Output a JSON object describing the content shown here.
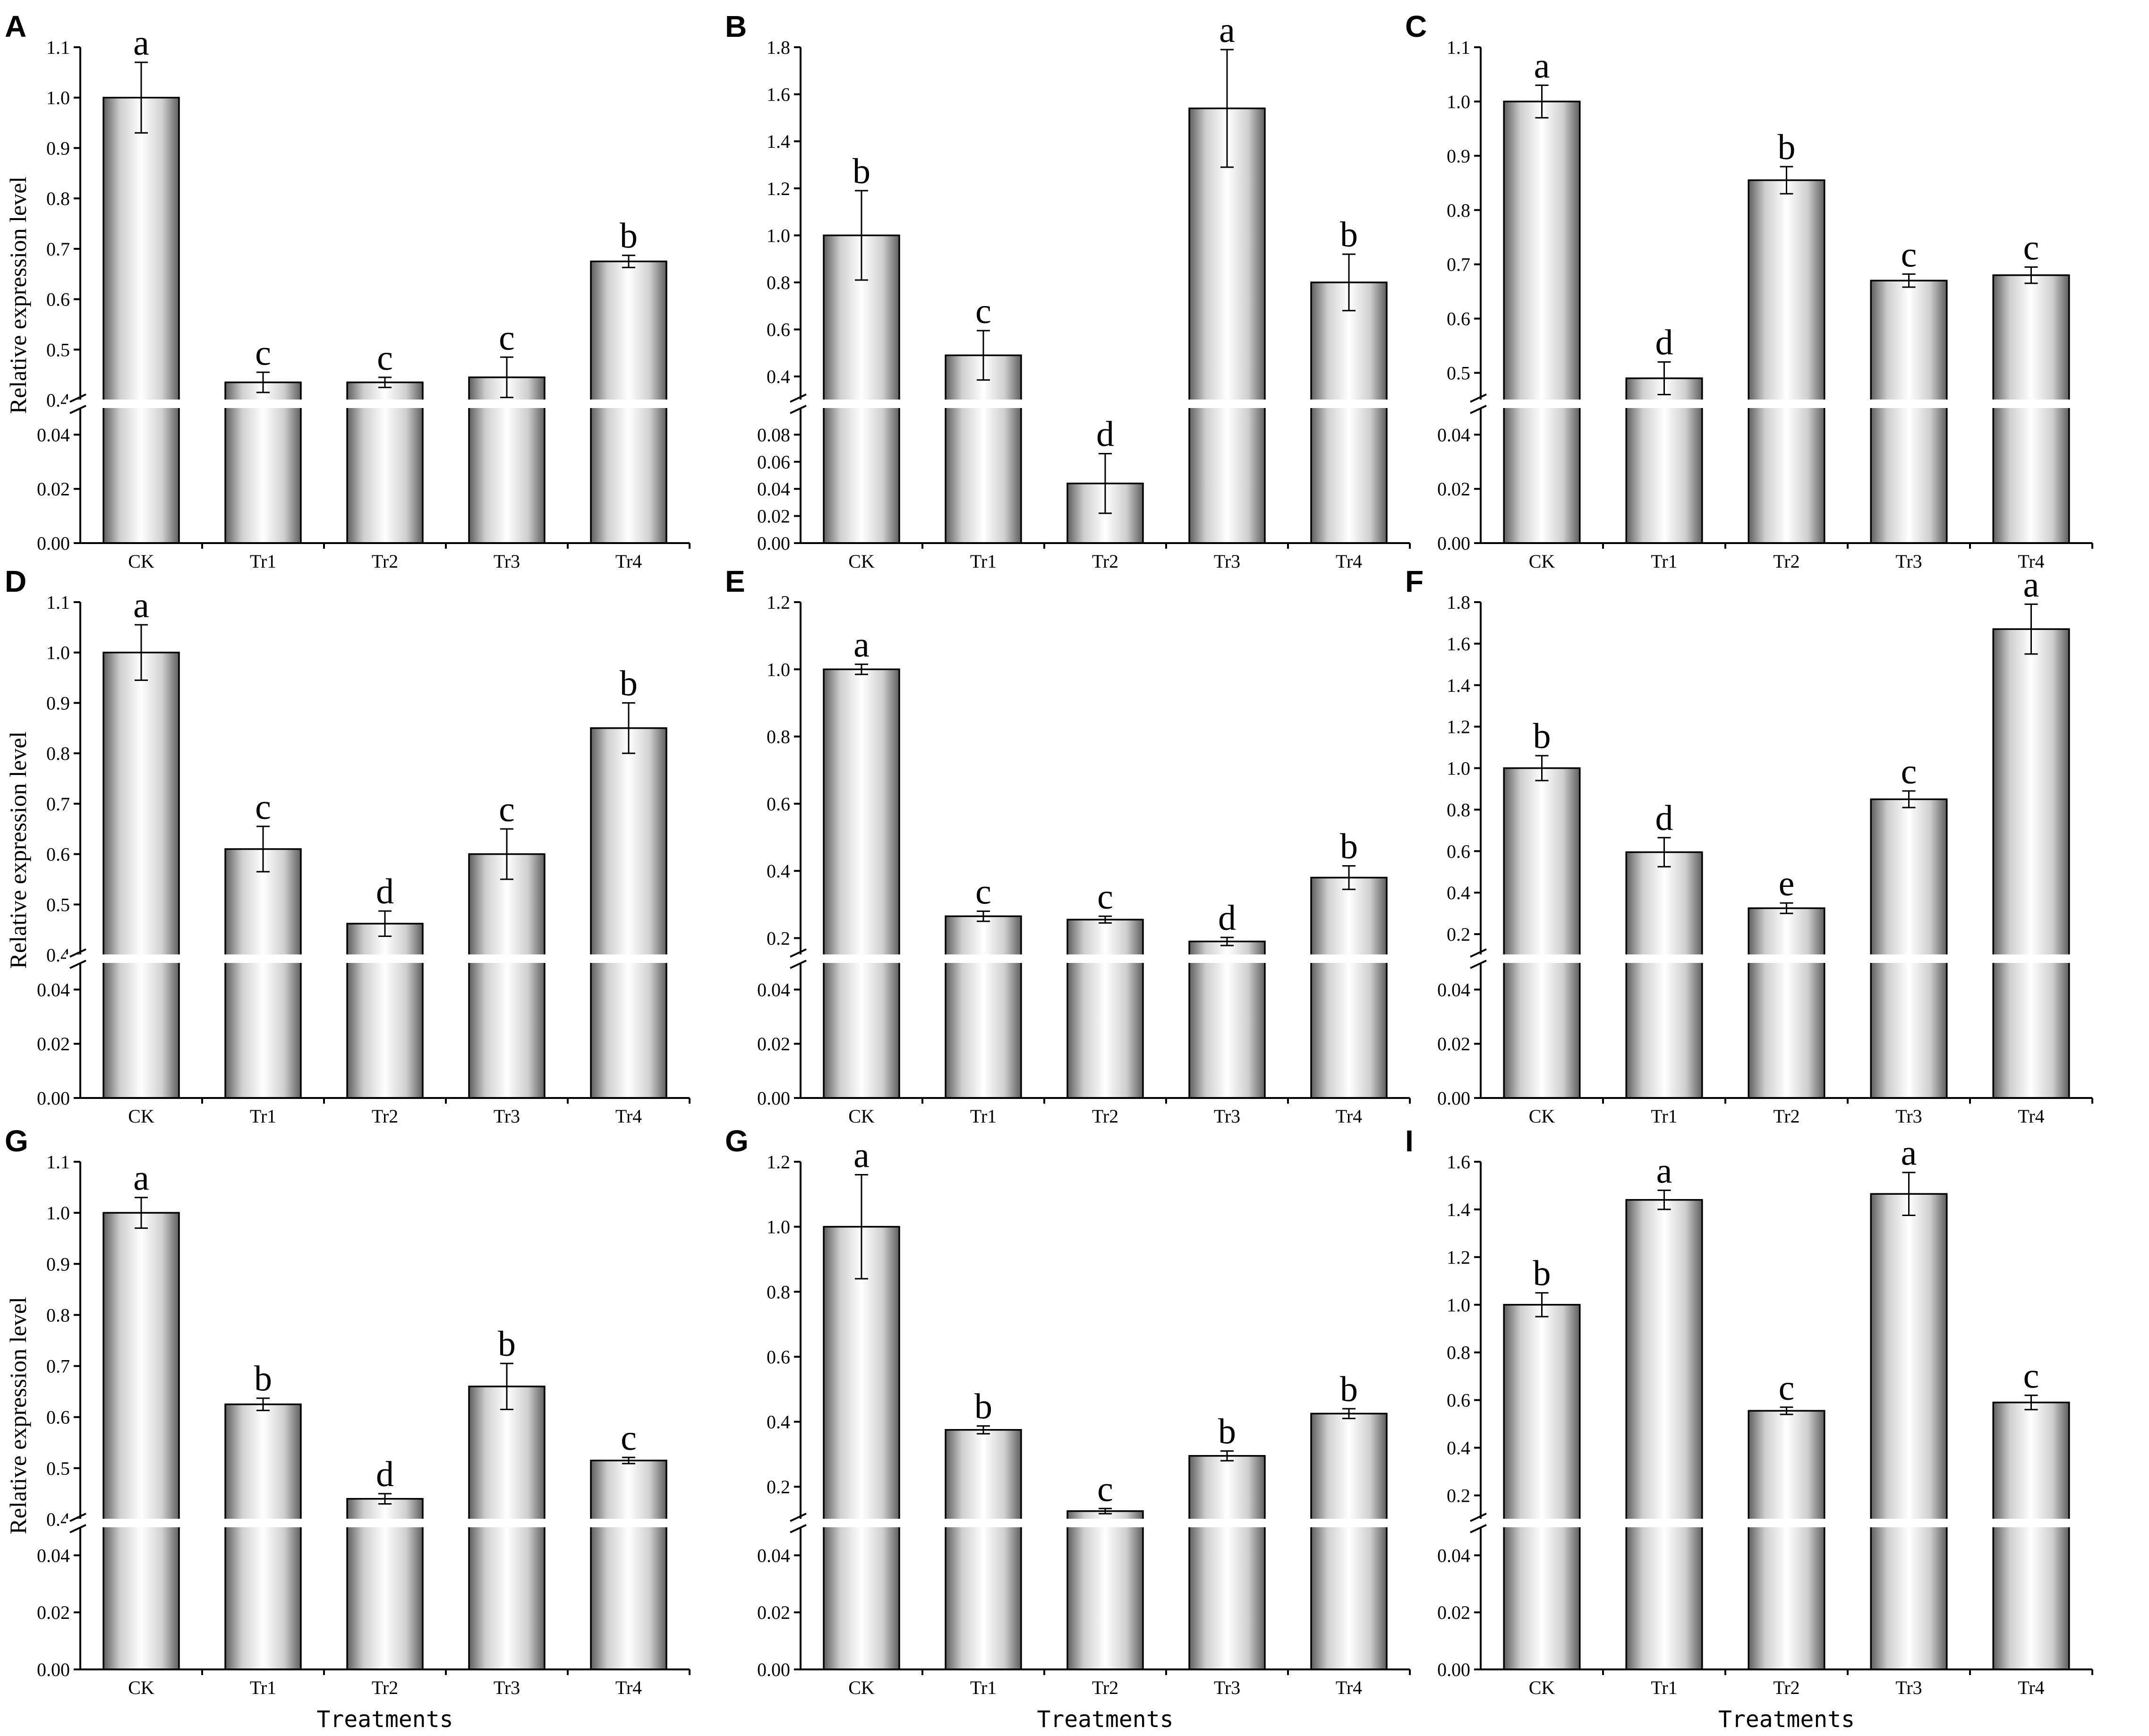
{
  "colors": {
    "bar_edge": "#ffffff",
    "bar_center": "#777777",
    "axis": "#000000"
  },
  "chart_data": [
    {
      "panel_label": "A",
      "type": "bar",
      "axis_break": true,
      "ylabel": "Relative expression level",
      "xlabel": "",
      "categories": [
        "CK",
        "Tr1",
        "Tr2",
        "Tr3",
        "Tr4"
      ],
      "values": [
        1.0,
        0.435,
        0.435,
        0.445,
        0.675
      ],
      "errors": [
        0.07,
        0.02,
        0.01,
        0.04,
        0.012
      ],
      "significance": [
        "a",
        "c",
        "c",
        "c",
        "b"
      ],
      "lower_ylim": [
        0,
        0.05
      ],
      "lower_ticks": [
        "0.00",
        "0.02",
        "0.04"
      ],
      "upper_ylim": [
        0.4,
        1.1
      ],
      "upper_ticks": [
        "0.4",
        "0.5",
        "0.6",
        "0.7",
        "0.8",
        "0.9",
        "1.0",
        "1.1"
      ]
    },
    {
      "panel_label": "B",
      "type": "bar",
      "axis_break": true,
      "ylabel": "",
      "xlabel": "",
      "categories": [
        "CK",
        "Tr1",
        "Tr2",
        "Tr3",
        "Tr4"
      ],
      "values": [
        1.0,
        0.49,
        0.044,
        1.54,
        0.8
      ],
      "errors": [
        0.19,
        0.105,
        0.022,
        0.25,
        0.12
      ],
      "significance": [
        "b",
        "c",
        "d",
        "a",
        "b"
      ],
      "lower_ylim": [
        0,
        0.1
      ],
      "lower_ticks": [
        "0.00",
        "0.02",
        "0.04",
        "0.06",
        "0.08"
      ],
      "upper_ylim": [
        0.3,
        1.8
      ],
      "upper_ticks": [
        "0.4",
        "0.6",
        "0.8",
        "1.0",
        "1.2",
        "1.4",
        "1.6",
        "1.8"
      ]
    },
    {
      "panel_label": "C",
      "type": "bar",
      "axis_break": true,
      "ylabel": "",
      "xlabel": "",
      "categories": [
        "CK",
        "Tr1",
        "Tr2",
        "Tr3",
        "Tr4"
      ],
      "values": [
        1.0,
        0.49,
        0.855,
        0.67,
        0.68
      ],
      "errors": [
        0.03,
        0.03,
        0.025,
        0.012,
        0.015
      ],
      "significance": [
        "a",
        "d",
        "b",
        "c",
        "c"
      ],
      "lower_ylim": [
        0,
        0.05
      ],
      "lower_ticks": [
        "0.00",
        "0.02",
        "0.04"
      ],
      "upper_ylim": [
        0.45,
        1.1
      ],
      "upper_ticks": [
        "0.5",
        "0.6",
        "0.7",
        "0.8",
        "0.9",
        "1.0",
        "1.1"
      ]
    },
    {
      "panel_label": "D",
      "type": "bar",
      "axis_break": true,
      "ylabel": "Relative expression level",
      "xlabel": "",
      "categories": [
        "CK",
        "Tr1",
        "Tr2",
        "Tr3",
        "Tr4"
      ],
      "values": [
        1.0,
        0.61,
        0.462,
        0.6,
        0.85
      ],
      "errors": [
        0.055,
        0.045,
        0.025,
        0.05,
        0.05
      ],
      "significance": [
        "a",
        "c",
        "d",
        "c",
        "b"
      ],
      "lower_ylim": [
        0,
        0.05
      ],
      "lower_ticks": [
        "0.00",
        "0.02",
        "0.04"
      ],
      "upper_ylim": [
        0.4,
        1.1
      ],
      "upper_ticks": [
        "0.4",
        "0.5",
        "0.6",
        "0.7",
        "0.8",
        "0.9",
        "1.0",
        "1.1"
      ]
    },
    {
      "panel_label": "E",
      "type": "bar",
      "axis_break": true,
      "ylabel": "",
      "xlabel": "",
      "categories": [
        "CK",
        "Tr1",
        "Tr2",
        "Tr3",
        "Tr4"
      ],
      "values": [
        1.0,
        0.265,
        0.255,
        0.19,
        0.38
      ],
      "errors": [
        0.015,
        0.015,
        0.01,
        0.012,
        0.035
      ],
      "significance": [
        "a",
        "c",
        "c",
        "d",
        "b"
      ],
      "lower_ylim": [
        0,
        0.05
      ],
      "lower_ticks": [
        "0.00",
        "0.02",
        "0.04"
      ],
      "upper_ylim": [
        0.15,
        1.2
      ],
      "upper_ticks": [
        "0.2",
        "0.4",
        "0.6",
        "0.8",
        "1.0",
        "1.2"
      ]
    },
    {
      "panel_label": "F",
      "type": "bar",
      "axis_break": true,
      "ylabel": "",
      "xlabel": "",
      "categories": [
        "CK",
        "Tr1",
        "Tr2",
        "Tr3",
        "Tr4"
      ],
      "values": [
        1.0,
        0.595,
        0.325,
        0.85,
        1.67
      ],
      "errors": [
        0.06,
        0.07,
        0.025,
        0.04,
        0.12
      ],
      "significance": [
        "b",
        "d",
        "e",
        "c",
        "a"
      ],
      "lower_ylim": [
        0,
        0.05
      ],
      "lower_ticks": [
        "0.00",
        "0.02",
        "0.04"
      ],
      "upper_ylim": [
        0.1,
        1.8
      ],
      "upper_ticks": [
        "0.2",
        "0.4",
        "0.6",
        "0.8",
        "1.0",
        "1.2",
        "1.4",
        "1.6",
        "1.8"
      ]
    },
    {
      "panel_label": "G",
      "type": "bar",
      "axis_break": true,
      "ylabel": "Relative expression level",
      "xlabel": "Treatments",
      "categories": [
        "CK",
        "Tr1",
        "Tr2",
        "Tr3",
        "Tr4"
      ],
      "values": [
        1.0,
        0.625,
        0.44,
        0.66,
        0.515
      ],
      "errors": [
        0.03,
        0.012,
        0.01,
        0.045,
        0.006
      ],
      "significance": [
        "a",
        "b",
        "d",
        "b",
        "c"
      ],
      "lower_ylim": [
        0,
        0.05
      ],
      "lower_ticks": [
        "0.00",
        "0.02",
        "0.04"
      ],
      "upper_ylim": [
        0.4,
        1.1
      ],
      "upper_ticks": [
        "0.4",
        "0.5",
        "0.6",
        "0.7",
        "0.8",
        "0.9",
        "1.0",
        "1.1"
      ]
    },
    {
      "panel_label": "G",
      "type": "bar",
      "axis_break": true,
      "ylabel": "",
      "xlabel": "Treatments",
      "categories": [
        "CK",
        "Tr1",
        "Tr2",
        "Tr3",
        "Tr4"
      ],
      "values": [
        1.0,
        0.375,
        0.125,
        0.295,
        0.425
      ],
      "errors": [
        0.16,
        0.012,
        0.008,
        0.015,
        0.015
      ],
      "significance": [
        "a",
        "b",
        "c",
        "b",
        "b"
      ],
      "lower_ylim": [
        0,
        0.05
      ],
      "lower_ticks": [
        "0.00",
        "0.02",
        "0.04"
      ],
      "upper_ylim": [
        0.1,
        1.2
      ],
      "upper_ticks": [
        "0.2",
        "0.4",
        "0.6",
        "0.8",
        "1.0",
        "1.2"
      ]
    },
    {
      "panel_label": "I",
      "type": "bar",
      "axis_break": true,
      "ylabel": "",
      "xlabel": "Treatments",
      "categories": [
        "CK",
        "Tr1",
        "Tr2",
        "Tr3",
        "Tr4"
      ],
      "values": [
        1.0,
        1.44,
        0.555,
        1.465,
        0.59
      ],
      "errors": [
        0.05,
        0.04,
        0.015,
        0.09,
        0.03
      ],
      "significance": [
        "b",
        "a",
        "c",
        "a",
        "c"
      ],
      "lower_ylim": [
        0,
        0.05
      ],
      "lower_ticks": [
        "0.00",
        "0.02",
        "0.04"
      ],
      "upper_ylim": [
        0.1,
        1.6
      ],
      "upper_ticks": [
        "0.2",
        "0.4",
        "0.6",
        "0.8",
        "1.0",
        "1.2",
        "1.4",
        "1.6"
      ]
    }
  ]
}
